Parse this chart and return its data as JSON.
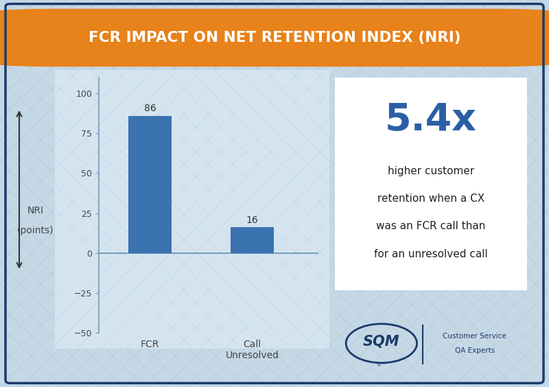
{
  "title": "FCR IMPACT ON NET RETENTION INDEX (NRI)",
  "title_color": "#FFFFFF",
  "title_bg_color": "#E8821A",
  "categories": [
    "FCR",
    "Call\nUnresolved"
  ],
  "values": [
    86,
    16
  ],
  "bar_color": "#3B72B0",
  "bar_labels": [
    "86",
    "16"
  ],
  "ylabel_line1": "NRI",
  "ylabel_line2": "(points)",
  "ylim": [
    -50,
    110
  ],
  "yticks": [
    -50,
    -25,
    0,
    25,
    50,
    75,
    100
  ],
  "bg_color": "#C5D8E5",
  "chart_bg_color": "#D5E5F0",
  "hatch_color": "#B0C8D8",
  "highlight_number": "5.4x",
  "highlight_number_color": "#2B5FA5",
  "highlight_text_lines": [
    "higher customer",
    "retention when a CX",
    "was an FCR call than",
    "for an unresolved call"
  ],
  "highlight_text_color": "#222222",
  "highlight_box_bg": "#FFFFFF",
  "highlight_box_border": "#CCCCCC",
  "border_color": "#1A3A6A",
  "zero_line_color": "#6090B0",
  "tick_color": "#444444",
  "bar_label_color": "#333333",
  "arrow_color": "#333333",
  "sqm_color": "#1A3A6A",
  "spine_color": "#7A9AB5"
}
